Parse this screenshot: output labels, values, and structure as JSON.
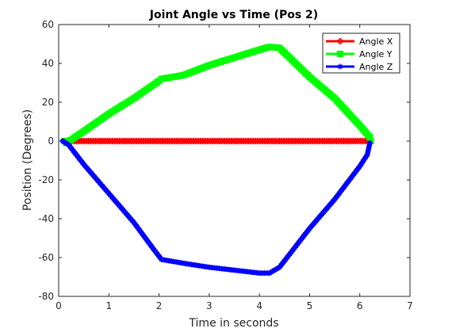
{
  "chart_data": {
    "type": "line",
    "title": "Joint Angle vs Time (Pos 2)",
    "xlabel": "Time in seconds",
    "ylabel": "Position (Degrees)",
    "xlim": [
      0,
      7
    ],
    "ylim": [
      -80,
      60
    ],
    "xticks": [
      "0",
      "1",
      "2",
      "3",
      "4",
      "5",
      "6",
      "7"
    ],
    "yticks": [
      "-80",
      "-60",
      "-40",
      "-20",
      "0",
      "20",
      "40",
      "60"
    ],
    "grid": false,
    "legend_position": "top-right",
    "series": [
      {
        "name": "Angle X",
        "color": "#ff0000",
        "marker": "diamond",
        "points": [
          [
            0.12,
            0
          ],
          [
            6.2,
            0
          ]
        ]
      },
      {
        "name": "Angle Y",
        "color": "#00ff00",
        "marker": "square",
        "points": [
          [
            0.12,
            0
          ],
          [
            0.15,
            -1
          ],
          [
            0.5,
            5
          ],
          [
            1.0,
            14
          ],
          [
            1.5,
            22
          ],
          [
            2.0,
            31
          ],
          [
            2.05,
            32
          ],
          [
            2.5,
            34
          ],
          [
            3.0,
            39
          ],
          [
            3.5,
            43
          ],
          [
            4.0,
            47
          ],
          [
            4.2,
            48.5
          ],
          [
            4.4,
            48
          ],
          [
            5.0,
            33
          ],
          [
            5.5,
            22
          ],
          [
            6.0,
            8
          ],
          [
            6.2,
            2
          ],
          [
            6.22,
            0
          ]
        ]
      },
      {
        "name": "Angle Z",
        "color": "#0000ff",
        "marker": "star",
        "points": [
          [
            0.08,
            0
          ],
          [
            0.2,
            -2
          ],
          [
            0.5,
            -12
          ],
          [
            1.0,
            -27
          ],
          [
            1.5,
            -42
          ],
          [
            1.9,
            -56
          ],
          [
            2.05,
            -61
          ],
          [
            2.5,
            -63
          ],
          [
            3.0,
            -65
          ],
          [
            3.5,
            -66.5
          ],
          [
            4.0,
            -68
          ],
          [
            4.2,
            -68
          ],
          [
            4.4,
            -65
          ],
          [
            5.0,
            -45
          ],
          [
            5.5,
            -30
          ],
          [
            6.0,
            -13
          ],
          [
            6.15,
            -7
          ],
          [
            6.2,
            -1
          ]
        ]
      }
    ]
  }
}
